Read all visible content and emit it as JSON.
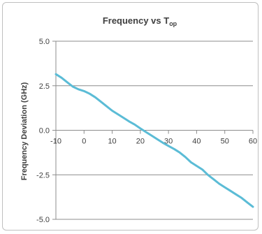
{
  "chart_data": {
    "type": "line",
    "title": "Frequency vs T",
    "title_subscript": "op",
    "xlabel": "",
    "ylabel": "Frequency Deviation (GHz)",
    "xlim": [
      -10,
      60
    ],
    "ylim": [
      -5.0,
      5.0
    ],
    "xticks": [
      -10,
      0,
      10,
      20,
      30,
      40,
      50,
      60
    ],
    "yticks": [
      5.0,
      2.5,
      0.0,
      -2.5,
      -5.0
    ],
    "ytick_labels": [
      "5.0",
      "2.5",
      "0.0",
      "-2.5",
      "-5.0"
    ],
    "grid": "horizontal",
    "legend": "none",
    "line_color": "#5bbcd6",
    "series": [
      {
        "x": [
          -10,
          -8,
          -6,
          -4,
          -2,
          0,
          2,
          4,
          6,
          8,
          10,
          12,
          14,
          16,
          18,
          20,
          22,
          24,
          26,
          28,
          30,
          32,
          34,
          36,
          38,
          40,
          42,
          44,
          46,
          48,
          50,
          52,
          54,
          56,
          58,
          60
        ],
        "values": [
          3.15,
          2.95,
          2.7,
          2.45,
          2.3,
          2.2,
          2.05,
          1.85,
          1.6,
          1.35,
          1.1,
          0.9,
          0.7,
          0.5,
          0.32,
          0.1,
          -0.1,
          -0.3,
          -0.5,
          -0.7,
          -0.88,
          -1.05,
          -1.25,
          -1.5,
          -1.8,
          -2.0,
          -2.2,
          -2.5,
          -2.75,
          -3.0,
          -3.2,
          -3.4,
          -3.6,
          -3.8,
          -4.05,
          -4.3
        ]
      }
    ]
  }
}
